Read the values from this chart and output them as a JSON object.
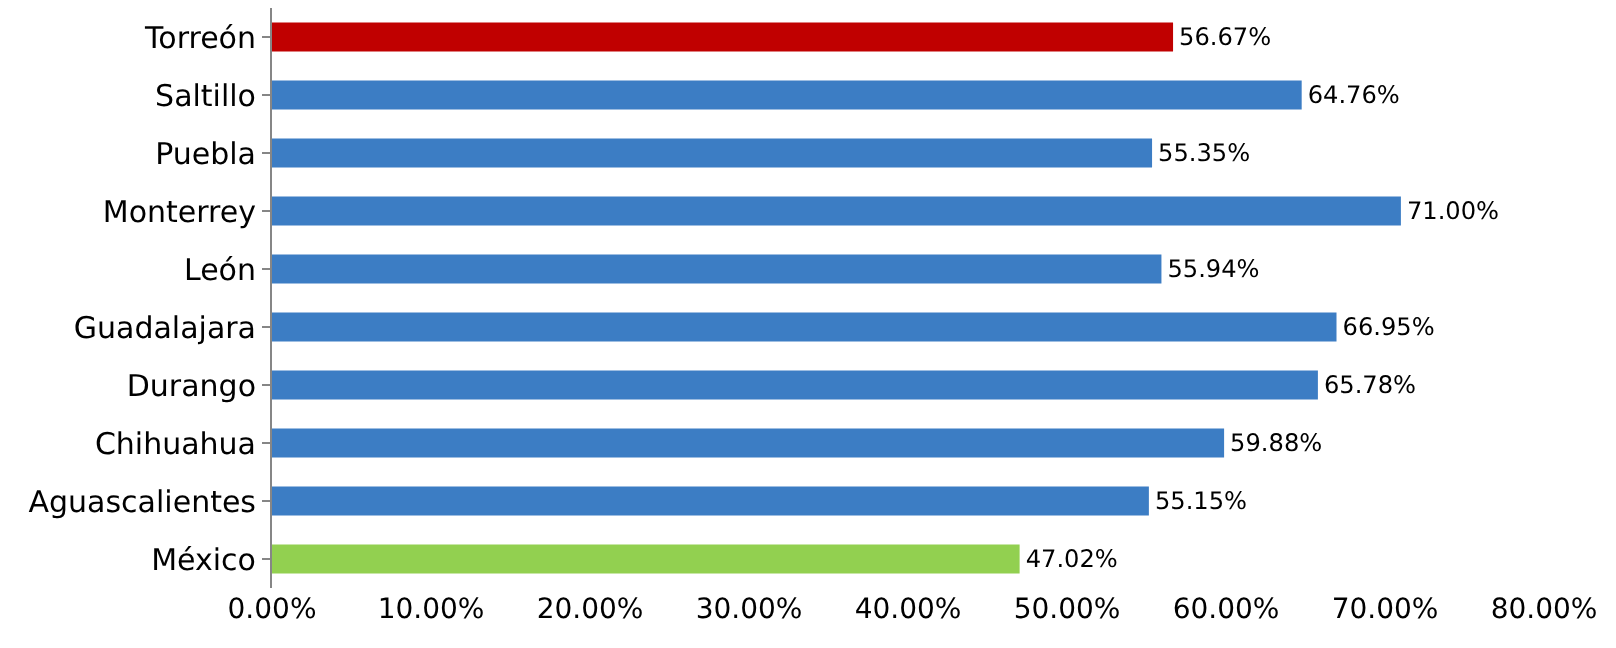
{
  "chart_data": {
    "type": "bar",
    "orientation": "horizontal",
    "categories": [
      "Torreón",
      "Saltillo",
      "Puebla",
      "Monterrey",
      "León",
      "Guadalajara",
      "Durango",
      "Chihuahua",
      "Aguascalientes",
      "México"
    ],
    "values": [
      56.67,
      64.76,
      55.35,
      71.0,
      55.94,
      66.95,
      65.78,
      59.88,
      55.15,
      47.02
    ],
    "colors": [
      "#c00000",
      "#3c7dc4",
      "#3c7dc4",
      "#3c7dc4",
      "#3c7dc4",
      "#3c7dc4",
      "#3c7dc4",
      "#3c7dc4",
      "#3c7dc4",
      "#92d050"
    ],
    "value_labels": [
      "56.67%",
      "64.76%",
      "55.35%",
      "71.00%",
      "55.94%",
      "66.95%",
      "65.78%",
      "59.88%",
      "55.15%",
      "47.02%"
    ],
    "xlim": [
      0,
      80
    ],
    "xticks": [
      {
        "value": 0,
        "label": "0.00%"
      },
      {
        "value": 10,
        "label": "10.00%"
      },
      {
        "value": 20,
        "label": "20.00%"
      },
      {
        "value": 30,
        "label": "30.00%"
      },
      {
        "value": 40,
        "label": "40.00%"
      },
      {
        "value": 50,
        "label": "50.00%"
      },
      {
        "value": 60,
        "label": "60.00%"
      },
      {
        "value": 70,
        "label": "70.00%"
      },
      {
        "value": 80,
        "label": "80.00%"
      }
    ],
    "grid": false,
    "legend": false
  }
}
